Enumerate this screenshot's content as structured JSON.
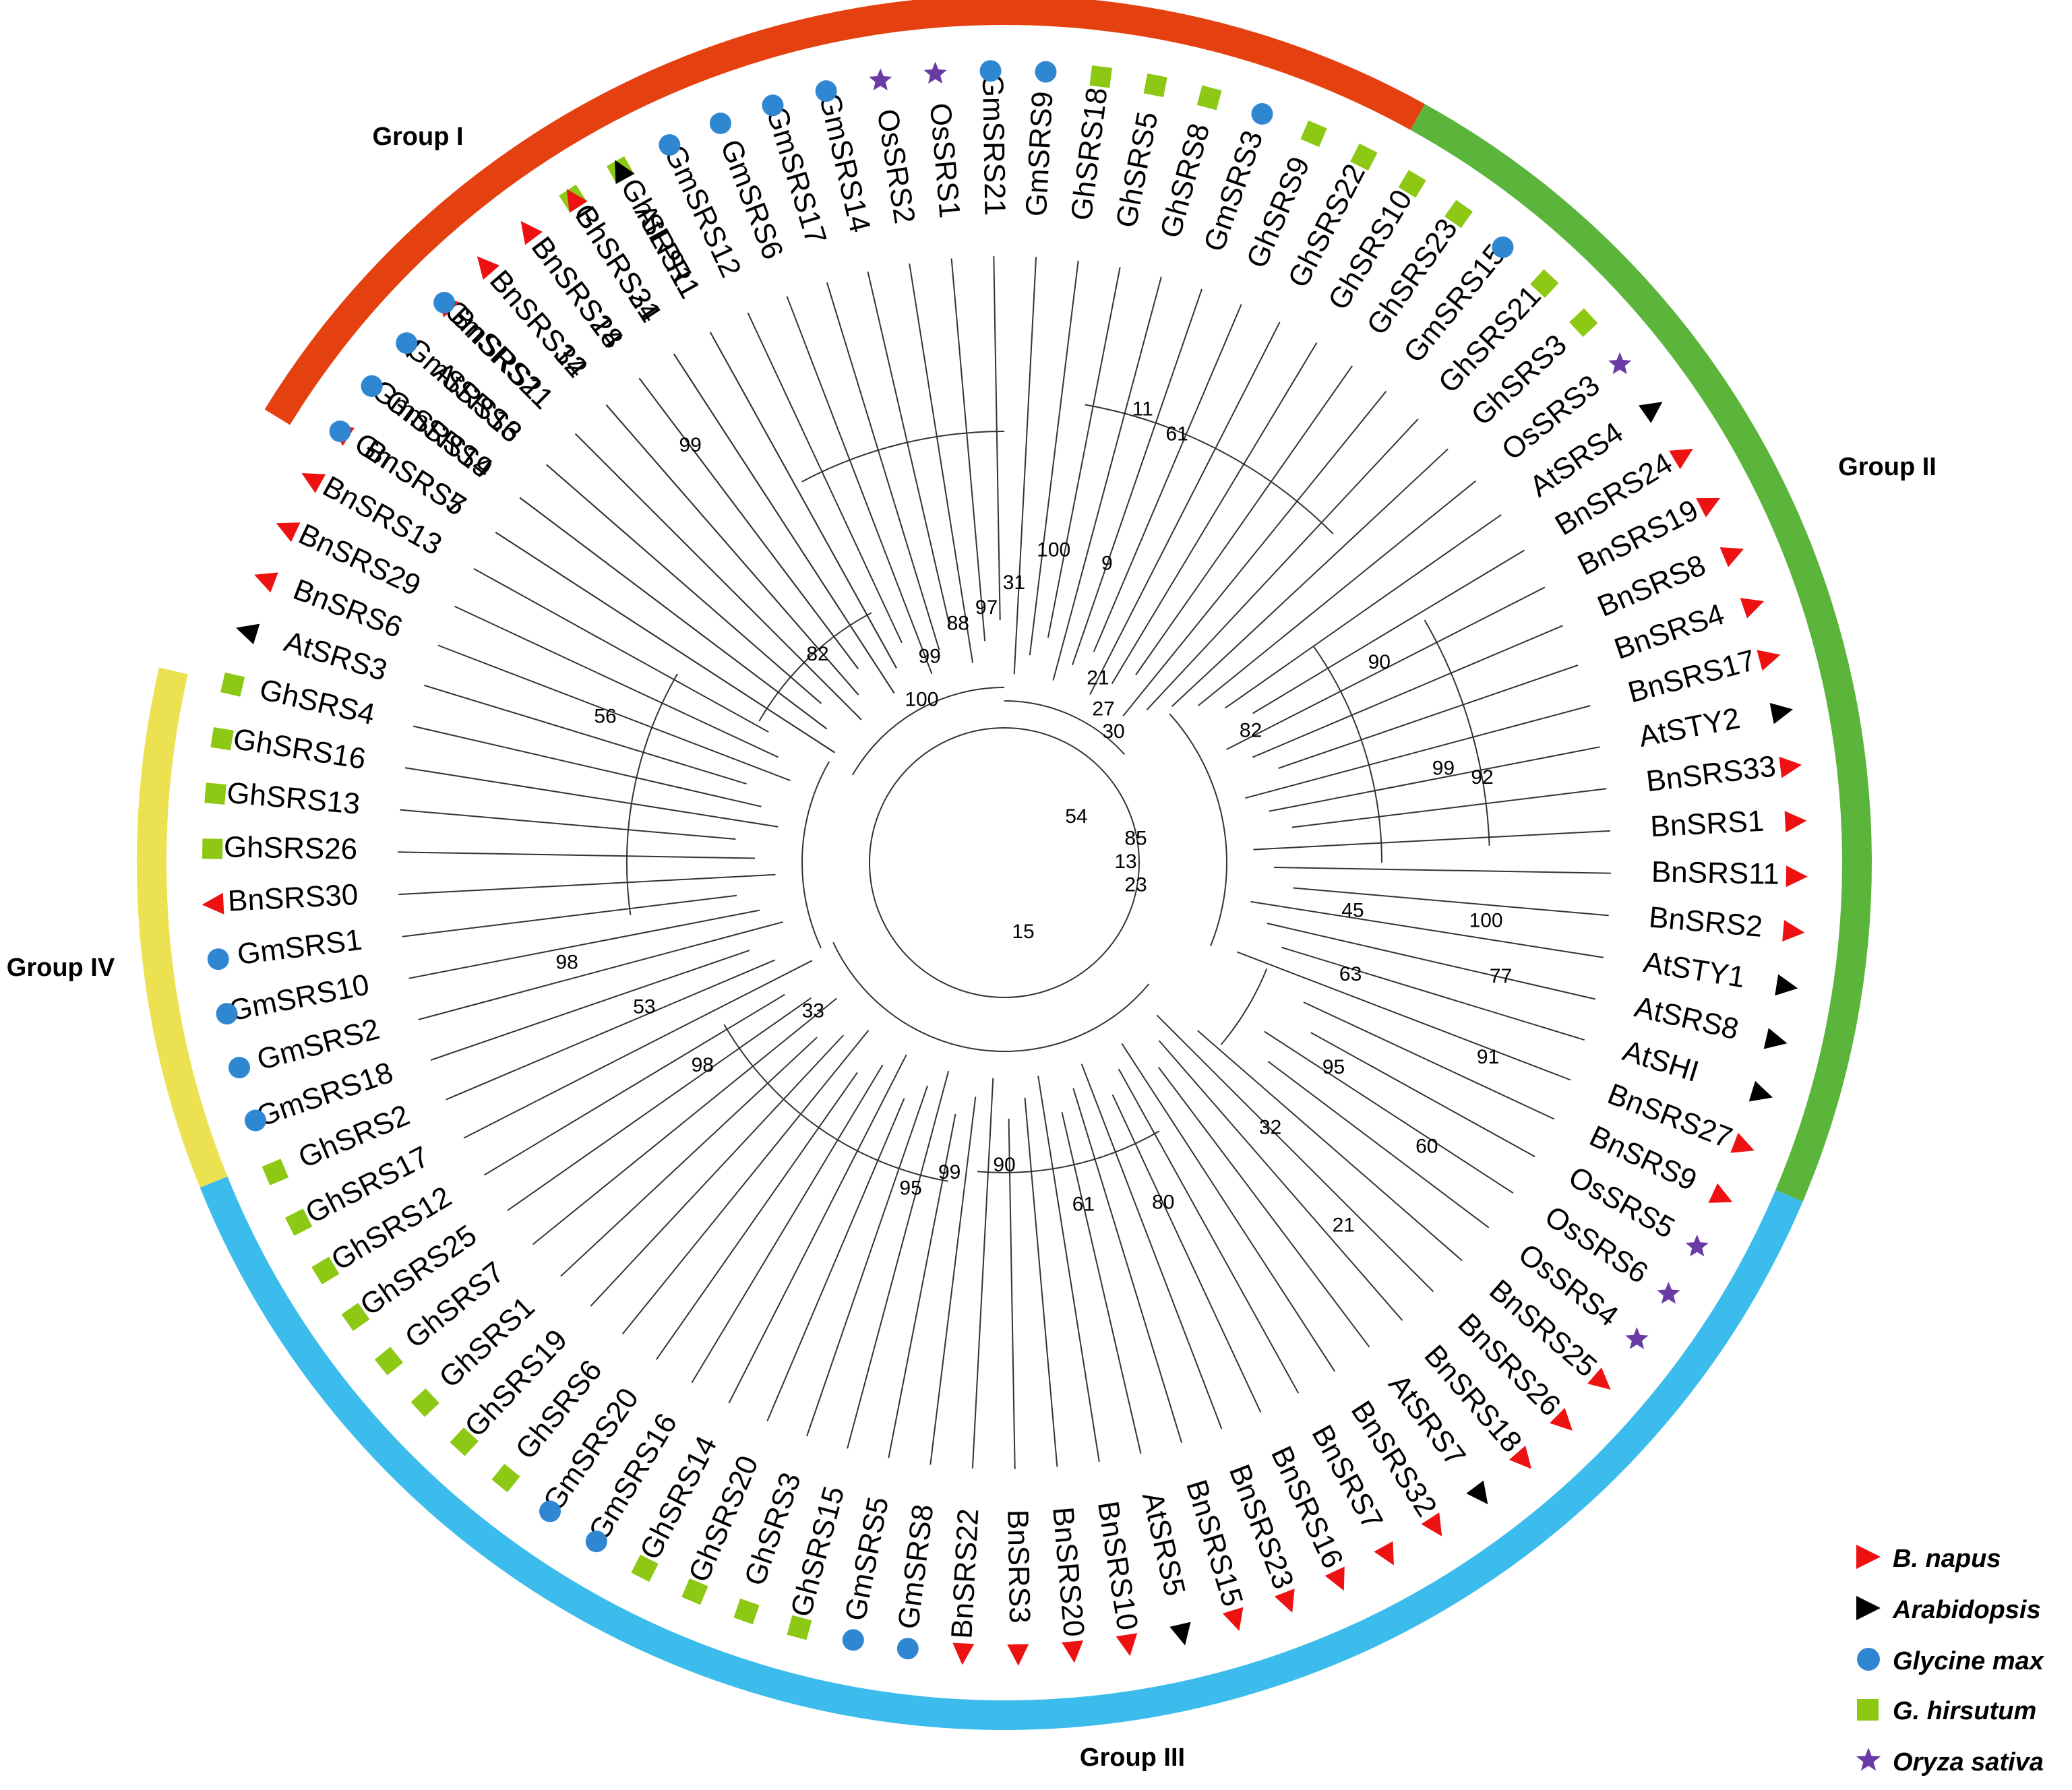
{
  "colors": {
    "group_I": "#e5400f",
    "group_II": "#5bb53a",
    "group_III": "#3bbcec",
    "group_IV": "#ece151",
    "bnapus": "#ee1111",
    "arabidopsis": "#000000",
    "glycine": "#2f86d1",
    "ghirsutum": "#8cc814",
    "oryza": "#6a3aa5"
  },
  "groups": [
    {
      "label": "Group I",
      "color_key": "group_I",
      "start_deg": 301.5,
      "end_deg": 29
    },
    {
      "label": "Group II",
      "color_key": "group_II",
      "start_deg": 29,
      "end_deg": 113
    },
    {
      "label": "Group III",
      "color_key": "group_III",
      "start_deg": 113,
      "end_deg": 248
    },
    {
      "label": "Group IV",
      "color_key": "group_IV",
      "start_deg": 248,
      "end_deg": 283
    }
  ],
  "legend": [
    {
      "label": "B. napus",
      "marker": "triangle",
      "color_key": "bnapus"
    },
    {
      "label": "Arabidopsis",
      "marker": "triangle",
      "color_key": "arabidopsis"
    },
    {
      "label": "Glycine max",
      "marker": "circle",
      "color_key": "glycine"
    },
    {
      "label": "G. hirsutum",
      "marker": "square",
      "color_key": "ghirsutum"
    },
    {
      "label": "Oryza sativa",
      "marker": "star",
      "color_key": "oryza"
    }
  ],
  "leaves": [
    {
      "name": "BnSRS5",
      "sp": "bnapus",
      "angle": 303
    },
    {
      "name": "GmSRS19",
      "sp": "glycine",
      "angle": 307
    },
    {
      "name": "AtSRS6",
      "sp": "arabidopsis",
      "angle": 311
    },
    {
      "name": "BnSRS21",
      "sp": "bnapus",
      "angle": 315
    },
    {
      "name": "BnSRS12",
      "sp": "bnapus",
      "angle": 319
    },
    {
      "name": "BnSRS28",
      "sp": "bnapus",
      "angle": 323
    },
    {
      "name": "GhSRS24",
      "sp": "ghirsutum",
      "angle": 327
    },
    {
      "name": "GhSRS11",
      "sp": "ghirsutum",
      "angle": 331
    },
    {
      "name": "GmSRS12",
      "sp": "glycine",
      "angle": 335
    },
    {
      "name": "GmSRS6",
      "sp": "glycine",
      "angle": 339
    },
    {
      "name": "GmSRS17",
      "sp": "glycine",
      "angle": 343
    },
    {
      "name": "GmSRS14",
      "sp": "glycine",
      "angle": 347
    },
    {
      "name": "OsSRS2",
      "sp": "oryza",
      "angle": 351
    },
    {
      "name": "OsSRS1",
      "sp": "oryza",
      "angle": 355
    },
    {
      "name": "GmSRS21",
      "sp": "glycine",
      "angle": 359
    },
    {
      "name": "GmSRS9",
      "sp": "glycine",
      "angle": 3
    },
    {
      "name": "GhSRS18",
      "sp": "ghirsutum",
      "angle": 7
    },
    {
      "name": "GhSRS5",
      "sp": "ghirsutum",
      "angle": 11
    },
    {
      "name": "GhSRS8",
      "sp": "ghirsutum",
      "angle": 15
    },
    {
      "name": "GmSRS3",
      "sp": "glycine",
      "angle": 19
    },
    {
      "name": "GhSRS9",
      "sp": "ghirsutum",
      "angle": 23
    },
    {
      "name": "GhSRS22",
      "sp": "ghirsutum",
      "angle": 27
    },
    {
      "name": "GhSRS10",
      "sp": "ghirsutum",
      "angle": 31
    },
    {
      "name": "GhSRS23",
      "sp": "ghirsutum",
      "angle": 35
    },
    {
      "name": "GmSRS15",
      "sp": "glycine",
      "angle": 39
    },
    {
      "name": "GhSRS21",
      "sp": "ghirsutum",
      "angle": 43
    },
    {
      "name": "GhSRS3",
      "sp": "ghirsutum",
      "angle": 47
    },
    {
      "name": "OsSRS3",
      "sp": "oryza",
      "angle": 51
    },
    {
      "name": "AtSRS4",
      "sp": "arabidopsis",
      "angle": 55
    },
    {
      "name": "BnSRS24",
      "sp": "bnapus",
      "angle": 59
    },
    {
      "name": "BnSRS19",
      "sp": "bnapus",
      "angle": 63
    },
    {
      "name": "BnSRS8",
      "sp": "bnapus",
      "angle": 67
    },
    {
      "name": "BnSRS4",
      "sp": "bnapus",
      "angle": 71
    },
    {
      "name": "BnSRS17",
      "sp": "bnapus",
      "angle": 75
    },
    {
      "name": "AtSTY2",
      "sp": "arabidopsis",
      "angle": 79
    },
    {
      "name": "BnSRS33",
      "sp": "bnapus",
      "angle": 83
    },
    {
      "name": "BnSRS1",
      "sp": "bnapus",
      "angle": 87
    },
    {
      "name": "BnSRS11",
      "sp": "bnapus",
      "angle": 91
    },
    {
      "name": "BnSRS2",
      "sp": "bnapus",
      "angle": 95
    },
    {
      "name": "AtSTY1",
      "sp": "arabidopsis",
      "angle": 99
    },
    {
      "name": "AtSRS8",
      "sp": "arabidopsis",
      "angle": 103
    },
    {
      "name": "AtSHI",
      "sp": "arabidopsis",
      "angle": 107
    },
    {
      "name": "BnSRS27",
      "sp": "bnapus",
      "angle": 111
    },
    {
      "name": "BnSRS9",
      "sp": "bnapus",
      "angle": 115
    },
    {
      "name": "OsSRS5",
      "sp": "oryza",
      "angle": 119
    },
    {
      "name": "OsSRS6",
      "sp": "oryza",
      "angle": 123
    },
    {
      "name": "OsSRS4",
      "sp": "oryza",
      "angle": 127
    },
    {
      "name": "BnSRS25",
      "sp": "bnapus",
      "angle": 131
    },
    {
      "name": "BnSRS26",
      "sp": "bnapus",
      "angle": 135
    },
    {
      "name": "BnSRS18",
      "sp": "bnapus",
      "angle": 139
    },
    {
      "name": "AtSRS7",
      "sp": "arabidopsis",
      "angle": 143
    },
    {
      "name": "BnSRS32",
      "sp": "bnapus",
      "angle": 147
    },
    {
      "name": "BnSRS7",
      "sp": "bnapus",
      "angle": 151
    },
    {
      "name": "BnSRS16",
      "sp": "bnapus",
      "angle": 155
    },
    {
      "name": "BnSRS23",
      "sp": "bnapus",
      "angle": 159
    },
    {
      "name": "BnSRS15",
      "sp": "bnapus",
      "angle": 163
    },
    {
      "name": "AtSRS5",
      "sp": "arabidopsis",
      "angle": 167
    },
    {
      "name": "BnSRS10",
      "sp": "bnapus",
      "angle": 171
    },
    {
      "name": "BnSRS20",
      "sp": "bnapus",
      "angle": 175
    },
    {
      "name": "BnSRS3",
      "sp": "bnapus",
      "angle": 179
    },
    {
      "name": "BnSRS22",
      "sp": "bnapus",
      "angle": 183
    },
    {
      "name": "GmSRS8",
      "sp": "glycine",
      "angle": 187
    },
    {
      "name": "GmSRS5",
      "sp": "glycine",
      "angle": 191
    },
    {
      "name": "GhSRS15",
      "sp": "ghirsutum",
      "angle": 195
    },
    {
      "name": "GhSRS3",
      "sp": "ghirsutum",
      "angle": 199
    },
    {
      "name": "GhSRS20",
      "sp": "ghirsutum",
      "angle": 203
    },
    {
      "name": "GhSRS14",
      "sp": "ghirsutum",
      "angle": 207
    },
    {
      "name": "GmSRS16",
      "sp": "glycine",
      "angle": 211
    },
    {
      "name": "GmSRS20",
      "sp": "glycine",
      "angle": 215
    },
    {
      "name": "GhSRS6",
      "sp": "ghirsutum",
      "angle": 219
    },
    {
      "name": "GhSRS19",
      "sp": "ghirsutum",
      "angle": 223
    },
    {
      "name": "GhSRS1",
      "sp": "ghirsutum",
      "angle": 227
    },
    {
      "name": "GhSRS7",
      "sp": "ghirsutum",
      "angle": 231
    },
    {
      "name": "GhSRS25",
      "sp": "ghirsutum",
      "angle": 235
    },
    {
      "name": "GhSRS12",
      "sp": "ghirsutum",
      "angle": 239
    },
    {
      "name": "GhSRS17",
      "sp": "ghirsutum",
      "angle": 243
    },
    {
      "name": "GhSRS2",
      "sp": "ghirsutum",
      "angle": 247
    },
    {
      "name": "GmSRS18",
      "sp": "glycine",
      "angle": 251
    },
    {
      "name": "GmSRS2",
      "sp": "glycine",
      "angle": 255
    },
    {
      "name": "GmSRS10",
      "sp": "glycine",
      "angle": 259
    },
    {
      "name": "GmSRS1",
      "sp": "glycine",
      "angle": 263
    },
    {
      "name": "BnSRS30",
      "sp": "bnapus",
      "angle": 267
    },
    {
      "name": "GhSRS26",
      "sp": "ghirsutum",
      "angle": 271
    },
    {
      "name": "GhSRS13",
      "sp": "ghirsutum",
      "angle": 275
    },
    {
      "name": "GhSRS16",
      "sp": "ghirsutum",
      "angle": 279
    },
    {
      "name": "GhSRS4",
      "sp": "ghirsutum",
      "angle": 283
    },
    {
      "name": "AtSRS3",
      "sp": "arabidopsis",
      "angle": 287
    },
    {
      "name": "BnSRS6",
      "sp": "bnapus",
      "angle": 291
    },
    {
      "name": "BnSRS29",
      "sp": "bnapus",
      "angle": 295
    },
    {
      "name": "BnSRS13",
      "sp": "bnapus",
      "angle": 299
    },
    {
      "name": "GmSRS7",
      "sp": "glycine",
      "angle": 303
    },
    {
      "name": "GmSRS4",
      "sp": "glycine",
      "angle": 307
    },
    {
      "name": "GmSRS13",
      "sp": "glycine",
      "angle": 311
    },
    {
      "name": "GmSRS11",
      "sp": "glycine",
      "angle": 315
    },
    {
      "name": "BnSRS34",
      "sp": "bnapus",
      "angle": 319
    },
    {
      "name": "BnSRS14",
      "sp": "bnapus",
      "angle": 323
    },
    {
      "name": "BnSRS31",
      "sp": "bnapus",
      "angle": 327
    },
    {
      "name": "AtLPR1",
      "sp": "arabidopsis",
      "angle": 331
    }
  ],
  "bootstrap": [
    {
      "v": "100",
      "a": 333,
      "r": 0.3
    },
    {
      "v": "99",
      "a": 340,
      "r": 0.36
    },
    {
      "v": "88",
      "a": 349,
      "r": 0.4
    },
    {
      "v": "97",
      "a": 356,
      "r": 0.42
    },
    {
      "v": "31",
      "a": 2,
      "r": 0.46
    },
    {
      "v": "100",
      "a": 9,
      "r": 0.52
    },
    {
      "v": "9",
      "a": 19,
      "r": 0.52
    },
    {
      "v": "11",
      "a": 17,
      "r": 0.78
    },
    {
      "v": "61",
      "a": 22,
      "r": 0.76
    },
    {
      "v": "21",
      "a": 27,
      "r": 0.34
    },
    {
      "v": "27",
      "a": 33,
      "r": 0.3
    },
    {
      "v": "30",
      "a": 40,
      "r": 0.28
    },
    {
      "v": "82",
      "a": 62,
      "r": 0.46
    },
    {
      "v": "90",
      "a": 62,
      "r": 0.7
    },
    {
      "v": "99",
      "a": 78,
      "r": 0.74
    },
    {
      "v": "92",
      "a": 80,
      "r": 0.8
    },
    {
      "v": "45",
      "a": 98,
      "r": 0.58
    },
    {
      "v": "100",
      "a": 97,
      "r": 0.8
    },
    {
      "v": "77",
      "a": 103,
      "r": 0.84
    },
    {
      "v": "63",
      "a": 108,
      "r": 0.6
    },
    {
      "v": "91",
      "a": 112,
      "r": 0.86
    },
    {
      "v": "95",
      "a": 122,
      "r": 0.64
    },
    {
      "v": "60",
      "a": 124,
      "r": 0.84
    },
    {
      "v": "32",
      "a": 135,
      "r": 0.62
    },
    {
      "v": "21",
      "a": 137,
      "r": 0.82
    },
    {
      "v": "80",
      "a": 155,
      "r": 0.62
    },
    {
      "v": "61",
      "a": 167,
      "r": 0.58
    },
    {
      "v": "90",
      "a": 180,
      "r": 0.5
    },
    {
      "v": "99",
      "a": 190,
      "r": 0.52
    },
    {
      "v": "95",
      "a": 196,
      "r": 0.56
    },
    {
      "v": "33",
      "a": 232,
      "r": 0.4
    },
    {
      "v": "98",
      "a": 236,
      "r": 0.6
    },
    {
      "v": "53",
      "a": 248,
      "r": 0.64
    },
    {
      "v": "98",
      "a": 257,
      "r": 0.74
    },
    {
      "v": "56",
      "a": 290,
      "r": 0.7
    },
    {
      "v": "82",
      "a": 318,
      "r": 0.46
    },
    {
      "v": "99",
      "a": 323,
      "r": 0.86
    },
    {
      "v": "85",
      "a": 80,
      "r": 0.22
    },
    {
      "v": "13",
      "a": 90,
      "r": 0.2
    },
    {
      "v": "23",
      "a": 100,
      "r": 0.22
    },
    {
      "v": "54",
      "a": 58,
      "r": 0.14
    },
    {
      "v": "15",
      "a": 165,
      "r": 0.12
    }
  ]
}
